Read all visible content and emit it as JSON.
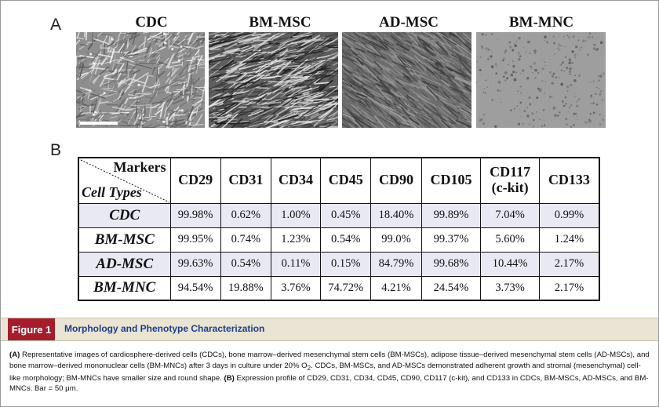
{
  "panel_labels": {
    "a": "A",
    "b": "B"
  },
  "images": [
    {
      "label": "CDC"
    },
    {
      "label": "BM-MSC"
    },
    {
      "label": "AD-MSC"
    },
    {
      "label": "BM-MNC"
    }
  ],
  "table": {
    "corner_top": "Markers",
    "corner_bottom": "Cell Types",
    "columns": [
      "CD29",
      "CD31",
      "CD34",
      "CD45",
      "CD90",
      "CD105",
      "CD117",
      "CD133"
    ],
    "column_sub": {
      "CD117": "(c-kit)"
    },
    "rows": [
      {
        "type": "CDC",
        "values": [
          "99.98%",
          "0.62%",
          "1.00%",
          "0.45%",
          "18.40%",
          "99.89%",
          "7.04%",
          "0.99%"
        ]
      },
      {
        "type": "BM-MSC",
        "values": [
          "99.95%",
          "0.74%",
          "1.23%",
          "0.54%",
          "99.0%",
          "99.37%",
          "5.60%",
          "1.24%"
        ]
      },
      {
        "type": "AD-MSC",
        "values": [
          "99.63%",
          "0.54%",
          "0.11%",
          "0.15%",
          "84.79%",
          "99.68%",
          "10.44%",
          "2.17%"
        ]
      },
      {
        "type": "BM-MNC",
        "values": [
          "94.54%",
          "19.88%",
          "3.76%",
          "74.72%",
          "4.21%",
          "24.54%",
          "3.73%",
          "2.17%"
        ]
      }
    ]
  },
  "figure": {
    "tag": "Figure 1",
    "title": "Morphology and Phenotype Characterization",
    "caption": {
      "a_label": "(A)",
      "a_text_1": " Representative images of cardiosphere-derived cells (CDCs), bone marrow–derived mesenchymal stem cells (BM-MSCs), adipose tissue–derived mesenchymal stem cells (AD-MSCs), and bone marrow–derived mononuclear cells (BM-MNCs) after 3 days in culture under 20% O",
      "a_sub": "2",
      "a_text_2": ". CDCs, BM-MSCs, and AD-MSCs demonstrated adherent growth and stromal (mesenchymal) cell-like morphology; BM-MNCs have smaller size and round shape. ",
      "b_label": "(B)",
      "b_text": " Expression profile of CD29, CD31, CD34, CD45, CD90, CD117 (c-kit), and CD133 in CDCs, BM-MSCs, AD-MSCs, and BM-MNCs. Bar = 50 μm."
    }
  },
  "colors": {
    "tag_bg": "#a51d2d",
    "title": "#1e3d8a",
    "caption_bar": "#e9e4d3",
    "row_shade": "#e9e9f3"
  }
}
